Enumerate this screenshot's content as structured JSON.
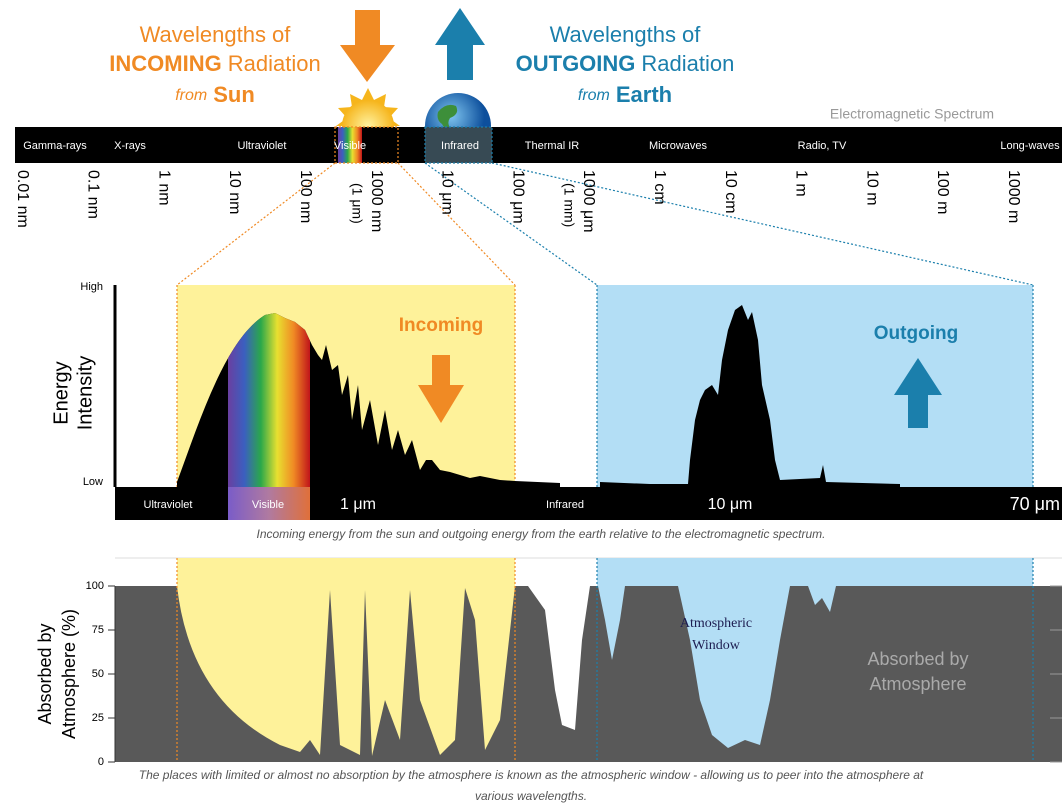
{
  "header": {
    "incoming": {
      "line1": "Wavelengths of",
      "emphasis": "INCOMING",
      "rest": "Radiation",
      "from": "from",
      "source": "Sun"
    },
    "outgoing": {
      "line1": "Wavelengths of",
      "emphasis": "OUTGOING",
      "rest": "Radiation",
      "from": "from",
      "source": "Earth"
    }
  },
  "spectrum": {
    "title": "Electromagnetic Spectrum",
    "bands": [
      "Gamma-rays",
      "X-rays",
      "Ultraviolet",
      "Visible",
      "Infrared",
      "Thermal IR",
      "Microwaves",
      "Radio, TV",
      "Long-waves"
    ],
    "scale": [
      {
        "label": "0.01 nm"
      },
      {
        "label": "0.1 nm"
      },
      {
        "label": "1 nm"
      },
      {
        "label": "10 nm"
      },
      {
        "label": "100 nm"
      },
      {
        "label": "1000 nm",
        "sub": "(1 μm)"
      },
      {
        "label": "10 μm"
      },
      {
        "label": "100 μm"
      },
      {
        "label": "1000 μm",
        "sub": "(1 mm)"
      },
      {
        "label": "1 cm"
      },
      {
        "label": "10 cm"
      },
      {
        "label": "1 m"
      },
      {
        "label": "10 m"
      },
      {
        "label": "100 m"
      },
      {
        "label": "1000 m"
      }
    ]
  },
  "energy_panel": {
    "axis_title": [
      "Energy",
      "Intensity"
    ],
    "high": "High",
    "low": "Low",
    "incoming": "Incoming",
    "outgoing": "Outgoing",
    "bar_labels": [
      "Ultraviolet",
      "Visible",
      "1 μm",
      "Infrared",
      "10 μm",
      "70 μm"
    ],
    "caption": "Incoming energy from the sun and outgoing energy from the earth relative to the electromagnetic spectrum."
  },
  "absorption_panel": {
    "axis_title": [
      "Absorbed by",
      "Atmosphere (%)"
    ],
    "ylim": [
      0,
      100
    ],
    "yticks": [
      0,
      25,
      50,
      75,
      100
    ],
    "window_label": [
      "Atmospheric",
      "Window"
    ],
    "absorbed_label": [
      "Absorbed by",
      "Atmosphere"
    ],
    "caption": [
      "The places with limited or almost no absorption by the atmosphere is known as the atmospheric window - allowing us to peer into the atmosphere at",
      "various wavelengths."
    ]
  }
}
